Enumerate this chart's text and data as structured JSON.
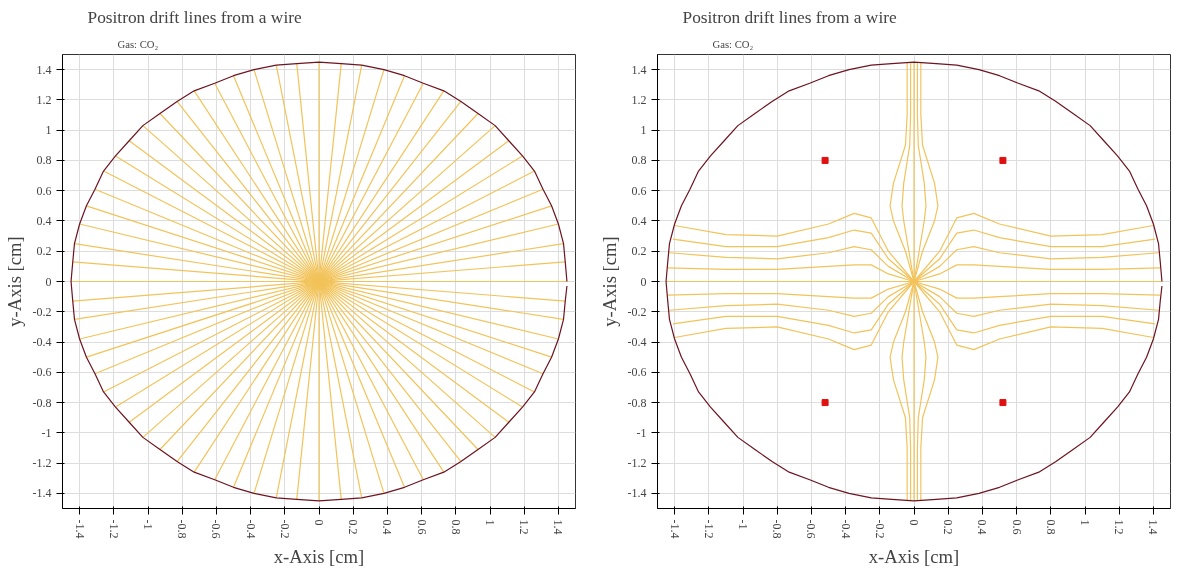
{
  "chart_data": [
    {
      "type": "line",
      "title": "Positron drift lines from a wire",
      "annotations": [
        "Gas: CO₂"
      ],
      "xlabel": "x-Axis [cm]",
      "ylabel": "y-Axis [cm]",
      "xlim": [
        -1.5,
        1.5
      ],
      "ylim": [
        -1.5,
        1.5
      ],
      "xticks": [
        -1.4,
        -1.2,
        -1,
        -0.8,
        -0.6,
        -0.4,
        -0.2,
        0,
        0.2,
        0.4,
        0.6,
        0.8,
        1,
        1.2,
        1.4
      ],
      "yticks": [
        -1.4,
        -1.2,
        -1,
        -0.8,
        -0.6,
        -0.4,
        -0.2,
        0,
        0.2,
        0.4,
        0.6,
        0.8,
        1,
        1.2,
        1.4
      ],
      "grid": true,
      "series": [
        {
          "color": "#f2c35a",
          "x": [
            -1.45,
            1.45
          ],
          "values": [
            0,
            0
          ]
        },
        {
          "color": "#f2c35a",
          "x": [
            -1.44,
            1.44
          ],
          "values": [
            -0.13,
            0.13
          ]
        },
        {
          "color": "#f2c35a",
          "x": [
            -1.43,
            1.43
          ],
          "values": [
            -0.25,
            0.25
          ]
        },
        {
          "color": "#f2c35a",
          "x": [
            -1.4,
            1.4
          ],
          "values": [
            -0.38,
            0.38
          ]
        },
        {
          "color": "#f2c35a",
          "x": [
            -1.36,
            1.36
          ],
          "values": [
            -0.5,
            0.5
          ]
        },
        {
          "color": "#f2c35a",
          "x": [
            -1.31,
            1.31
          ],
          "values": [
            -0.61,
            0.61
          ]
        },
        {
          "color": "#f2c35a",
          "x": [
            -1.26,
            1.26
          ],
          "values": [
            -0.73,
            0.73
          ]
        },
        {
          "color": "#f2c35a",
          "x": [
            -1.19,
            1.19
          ],
          "values": [
            -0.83,
            0.83
          ]
        },
        {
          "color": "#f2c35a",
          "x": [
            -1.11,
            1.11
          ],
          "values": [
            -0.93,
            0.93
          ]
        },
        {
          "color": "#f2c35a",
          "x": [
            -1.03,
            1.03
          ],
          "values": [
            -1.03,
            1.03
          ]
        },
        {
          "color": "#f2c35a",
          "x": [
            -0.93,
            0.93
          ],
          "values": [
            -1.11,
            1.11
          ]
        },
        {
          "color": "#f2c35a",
          "x": [
            -0.83,
            0.83
          ],
          "values": [
            -1.19,
            1.19
          ]
        },
        {
          "color": "#f2c35a",
          "x": [
            -0.73,
            0.73
          ],
          "values": [
            -1.26,
            1.26
          ]
        },
        {
          "color": "#f2c35a",
          "x": [
            -0.61,
            0.61
          ],
          "values": [
            -1.31,
            1.31
          ]
        },
        {
          "color": "#f2c35a",
          "x": [
            -0.5,
            0.5
          ],
          "values": [
            -1.36,
            1.36
          ]
        },
        {
          "color": "#f2c35a",
          "x": [
            -0.38,
            0.38
          ],
          "values": [
            -1.4,
            1.4
          ]
        },
        {
          "color": "#f2c35a",
          "x": [
            -0.25,
            0.25
          ],
          "values": [
            -1.43,
            1.43
          ]
        },
        {
          "color": "#f2c35a",
          "x": [
            -0.13,
            0.13
          ],
          "values": [
            -1.44,
            1.44
          ]
        },
        {
          "color": "#f2c35a",
          "x": [
            0,
            0
          ],
          "values": [
            -1.45,
            1.45
          ]
        },
        {
          "color": "#f2c35a",
          "x": [
            0.13,
            -0.13
          ],
          "values": [
            -1.44,
            1.44
          ]
        },
        {
          "color": "#f2c35a",
          "x": [
            0.25,
            -0.25
          ],
          "values": [
            -1.43,
            1.43
          ]
        },
        {
          "color": "#f2c35a",
          "x": [
            0.38,
            -0.38
          ],
          "values": [
            -1.4,
            1.4
          ]
        },
        {
          "color": "#f2c35a",
          "x": [
            0.5,
            -0.5
          ],
          "values": [
            -1.36,
            1.36
          ]
        },
        {
          "color": "#f2c35a",
          "x": [
            0.61,
            -0.61
          ],
          "values": [
            -1.31,
            1.31
          ]
        },
        {
          "color": "#f2c35a",
          "x": [
            0.73,
            -0.73
          ],
          "values": [
            -1.26,
            1.26
          ]
        },
        {
          "color": "#f2c35a",
          "x": [
            0.83,
            -0.83
          ],
          "values": [
            -1.19,
            1.19
          ]
        },
        {
          "color": "#f2c35a",
          "x": [
            0.93,
            -0.93
          ],
          "values": [
            -1.11,
            1.11
          ]
        },
        {
          "color": "#f2c35a",
          "x": [
            1.03,
            -1.03
          ],
          "values": [
            -1.03,
            1.03
          ]
        },
        {
          "color": "#f2c35a",
          "x": [
            1.11,
            -1.11
          ],
          "values": [
            -0.93,
            0.93
          ]
        },
        {
          "color": "#f2c35a",
          "x": [
            1.19,
            -1.19
          ],
          "values": [
            -0.83,
            0.83
          ]
        },
        {
          "color": "#f2c35a",
          "x": [
            1.26,
            -1.26
          ],
          "values": [
            -0.73,
            0.73
          ]
        },
        {
          "color": "#f2c35a",
          "x": [
            1.31,
            -1.31
          ],
          "values": [
            -0.61,
            0.61
          ]
        },
        {
          "color": "#f2c35a",
          "x": [
            1.36,
            -1.36
          ],
          "values": [
            -0.5,
            0.5
          ]
        },
        {
          "color": "#f2c35a",
          "x": [
            1.4,
            -1.4
          ],
          "values": [
            -0.38,
            0.38
          ]
        },
        {
          "color": "#f2c35a",
          "x": [
            1.43,
            -1.43
          ],
          "values": [
            -0.25,
            0.25
          ]
        },
        {
          "color": "#f2c35a",
          "x": [
            1.44,
            -1.44
          ],
          "values": [
            -0.13,
            0.13
          ]
        },
        {
          "color": "#6e1420",
          "x": [
            1.45,
            1.44,
            1.43,
            1.4,
            1.36,
            1.31,
            1.26,
            1.19,
            1.11,
            1.03,
            0.93,
            0.83,
            0.73,
            0.61,
            0.5,
            0.38,
            0.25,
            0.13,
            0,
            -0.13,
            -0.25,
            -0.38,
            -0.5,
            -0.61,
            -0.73,
            -0.83,
            -0.93,
            -1.03,
            -1.11,
            -1.19,
            -1.26,
            -1.31,
            -1.36,
            -1.4,
            -1.43,
            -1.44,
            -1.45,
            -1.44,
            -1.43,
            -1.4,
            -1.36,
            -1.31,
            -1.26,
            -1.19,
            -1.11,
            -1.03,
            -0.93,
            -0.83,
            -0.73,
            -0.61,
            -0.5,
            -0.38,
            -0.25,
            -0.13,
            0,
            0.13,
            0.25,
            0.38,
            0.5,
            0.61,
            0.73,
            0.83,
            0.93,
            1.03,
            1.11,
            1.19,
            1.26,
            1.31,
            1.36,
            1.4,
            1.43,
            1.44,
            1.45
          ],
          "values": [
            0,
            0.13,
            0.25,
            0.38,
            0.5,
            0.61,
            0.73,
            0.83,
            0.93,
            1.03,
            1.11,
            1.19,
            1.26,
            1.31,
            1.36,
            1.4,
            1.43,
            1.44,
            1.45,
            1.44,
            1.43,
            1.4,
            1.36,
            1.31,
            1.26,
            1.19,
            1.11,
            1.03,
            0.93,
            0.83,
            0.73,
            0.61,
            0.5,
            0.38,
            0.25,
            0.13,
            0,
            -0.13,
            -0.25,
            -0.38,
            -0.5,
            -0.61,
            -0.73,
            -0.83,
            -0.93,
            -1.03,
            -1.11,
            -1.19,
            -1.26,
            -1.31,
            -1.36,
            -1.4,
            -1.43,
            -1.44,
            -1.45,
            -1.44,
            -1.43,
            -1.4,
            -1.36,
            -1.31,
            -1.26,
            -1.19,
            -1.11,
            -1.03,
            -0.93,
            -0.83,
            -0.73,
            -0.61,
            -0.5,
            -0.38,
            -0.25,
            -0.13,
            -0.03
          ]
        }
      ]
    },
    {
      "type": "line",
      "title": "Positron drift lines from a wire",
      "annotations": [
        "Gas: CO₂"
      ],
      "xlabel": "x-Axis [cm]",
      "ylabel": "y-Axis [cm]",
      "xlim": [
        -1.5,
        1.5
      ],
      "ylim": [
        -1.5,
        1.5
      ],
      "xticks": [
        -1.4,
        -1.2,
        -1,
        -0.8,
        -0.6,
        -0.4,
        -0.2,
        0,
        0.2,
        0.4,
        0.6,
        0.8,
        1,
        1.2,
        1.4
      ],
      "yticks": [
        -1.4,
        -1.2,
        -1,
        -0.8,
        -0.6,
        -0.4,
        -0.2,
        0,
        0.2,
        0.4,
        0.6,
        0.8,
        1,
        1.2,
        1.4
      ],
      "grid": true,
      "series": [
        {
          "color": "#f2c35a",
          "x": [
            -1.45,
            1.45
          ],
          "values": [
            0,
            0
          ]
        },
        {
          "color": "#f2c35a",
          "x": [
            -1.4,
            -1.1,
            -0.8,
            -0.5,
            -0.35,
            -0.25,
            -0.15,
            0,
            0.15,
            0.25,
            0.35,
            0.5,
            0.8,
            1.1,
            1.4
          ],
          "values": [
            -0.37,
            -0.31,
            -0.3,
            -0.38,
            -0.45,
            -0.42,
            -0.2,
            0,
            0.2,
            0.42,
            0.45,
            0.38,
            0.3,
            0.31,
            0.37
          ]
        },
        {
          "color": "#f2c35a",
          "x": [
            -1.41,
            -1.1,
            -0.8,
            -0.5,
            -0.35,
            -0.25,
            -0.15,
            0,
            0.15,
            0.25,
            0.35,
            0.5,
            0.8,
            1.1,
            1.41
          ],
          "values": [
            -0.28,
            -0.23,
            -0.23,
            -0.29,
            -0.34,
            -0.32,
            -0.15,
            0,
            0.15,
            0.32,
            0.34,
            0.29,
            0.23,
            0.23,
            0.28
          ]
        },
        {
          "color": "#f2c35a",
          "x": [
            -1.43,
            -1.1,
            -0.8,
            -0.5,
            -0.35,
            -0.25,
            -0.15,
            0,
            0.15,
            0.25,
            0.35,
            0.5,
            0.8,
            1.1,
            1.43
          ],
          "values": [
            -0.19,
            -0.16,
            -0.15,
            -0.19,
            -0.23,
            -0.21,
            -0.1,
            0,
            0.1,
            0.21,
            0.23,
            0.19,
            0.15,
            0.16,
            0.19
          ]
        },
        {
          "color": "#f2c35a",
          "x": [
            -1.44,
            -1.1,
            -0.8,
            -0.5,
            -0.35,
            -0.25,
            -0.15,
            0,
            0.15,
            0.25,
            0.35,
            0.5,
            0.8,
            1.1,
            1.44
          ],
          "values": [
            -0.09,
            -0.08,
            -0.08,
            -0.1,
            -0.11,
            -0.11,
            -0.05,
            0,
            0.05,
            0.11,
            0.11,
            0.1,
            0.08,
            0.08,
            0.09
          ]
        },
        {
          "color": "#f2c35a",
          "x": [
            1.4,
            1.1,
            0.8,
            0.5,
            0.35,
            0.25,
            0.15,
            0,
            -0.15,
            -0.25,
            -0.35,
            -0.5,
            -0.8,
            -1.1,
            -1.4
          ],
          "values": [
            -0.37,
            -0.31,
            -0.3,
            -0.38,
            -0.45,
            -0.42,
            -0.2,
            0,
            0.2,
            0.42,
            0.45,
            0.38,
            0.3,
            0.31,
            0.37
          ]
        },
        {
          "color": "#f2c35a",
          "x": [
            1.41,
            1.1,
            0.8,
            0.5,
            0.35,
            0.25,
            0.15,
            0,
            -0.15,
            -0.25,
            -0.35,
            -0.5,
            -0.8,
            -1.1,
            -1.41
          ],
          "values": [
            -0.28,
            -0.23,
            -0.23,
            -0.29,
            -0.34,
            -0.32,
            -0.15,
            0,
            0.15,
            0.32,
            0.34,
            0.29,
            0.23,
            0.23,
            0.28
          ]
        },
        {
          "color": "#f2c35a",
          "x": [
            1.43,
            1.1,
            0.8,
            0.5,
            0.35,
            0.25,
            0.15,
            0,
            -0.15,
            -0.25,
            -0.35,
            -0.5,
            -0.8,
            -1.1,
            -1.43
          ],
          "values": [
            -0.19,
            -0.16,
            -0.15,
            -0.19,
            -0.23,
            -0.21,
            -0.1,
            0,
            0.1,
            0.21,
            0.23,
            0.19,
            0.15,
            0.16,
            0.19
          ]
        },
        {
          "color": "#f2c35a",
          "x": [
            1.44,
            1.1,
            0.8,
            0.5,
            0.35,
            0.25,
            0.15,
            0,
            -0.15,
            -0.25,
            -0.35,
            -0.5,
            -0.8,
            -1.1,
            -1.44
          ],
          "values": [
            -0.09,
            -0.08,
            -0.08,
            -0.1,
            -0.11,
            -0.11,
            -0.05,
            0,
            0.05,
            0.11,
            0.11,
            0.1,
            0.08,
            0.08,
            0.09
          ]
        },
        {
          "color": "#f2c35a",
          "x": [
            0,
            0
          ],
          "values": [
            -1.45,
            1.45
          ]
        },
        {
          "color": "#f2c35a",
          "x": [
            -0.04,
            -0.04,
            -0.05,
            -0.12,
            -0.14,
            -0.12,
            -0.05,
            0,
            0.05,
            0.12,
            0.14,
            0.12,
            0.05,
            0.04,
            0.04
          ],
          "values": [
            -1.45,
            -1.1,
            -0.9,
            -0.65,
            -0.5,
            -0.4,
            -0.2,
            0,
            0.2,
            0.4,
            0.5,
            0.65,
            0.9,
            1.1,
            1.45
          ]
        },
        {
          "color": "#f2c35a",
          "x": [
            -0.02,
            -0.02,
            -0.025,
            -0.06,
            -0.07,
            -0.06,
            -0.03,
            0,
            0.03,
            0.06,
            0.07,
            0.06,
            0.025,
            0.02,
            0.02
          ],
          "values": [
            -1.45,
            -1.1,
            -0.9,
            -0.65,
            -0.5,
            -0.4,
            -0.2,
            0,
            0.2,
            0.4,
            0.5,
            0.65,
            0.9,
            1.1,
            1.45
          ]
        },
        {
          "color": "#f2c35a",
          "x": [
            0.04,
            0.04,
            0.05,
            0.12,
            0.14,
            0.12,
            0.05,
            0,
            -0.05,
            -0.12,
            -0.14,
            -0.12,
            -0.05,
            -0.04,
            -0.04
          ],
          "values": [
            -1.45,
            -1.1,
            -0.9,
            -0.65,
            -0.5,
            -0.4,
            -0.2,
            0,
            0.2,
            0.4,
            0.5,
            0.65,
            0.9,
            1.1,
            1.45
          ]
        },
        {
          "color": "#f2c35a",
          "x": [
            0.02,
            0.02,
            0.025,
            0.06,
            0.07,
            0.06,
            0.03,
            0,
            -0.03,
            -0.06,
            -0.07,
            -0.06,
            -0.025,
            -0.02,
            -0.02
          ],
          "values": [
            -1.45,
            -1.1,
            -0.9,
            -0.65,
            -0.5,
            -0.4,
            -0.2,
            0,
            0.2,
            0.4,
            0.5,
            0.65,
            0.9,
            1.1,
            1.45
          ]
        },
        {
          "color": "#6e1420",
          "x": [
            1.45,
            1.44,
            1.43,
            1.4,
            1.36,
            1.31,
            1.26,
            1.19,
            1.11,
            1.03,
            0.93,
            0.83,
            0.73,
            0.61,
            0.5,
            0.38,
            0.25,
            0.13,
            0,
            -0.13,
            -0.25,
            -0.38,
            -0.5,
            -0.61,
            -0.73,
            -0.83,
            -0.93,
            -1.03,
            -1.11,
            -1.19,
            -1.26,
            -1.31,
            -1.36,
            -1.4,
            -1.43,
            -1.44,
            -1.45,
            -1.44,
            -1.43,
            -1.4,
            -1.36,
            -1.31,
            -1.26,
            -1.19,
            -1.11,
            -1.03,
            -0.93,
            -0.83,
            -0.73,
            -0.61,
            -0.5,
            -0.38,
            -0.25,
            -0.13,
            0,
            0.13,
            0.25,
            0.38,
            0.5,
            0.61,
            0.73,
            0.83,
            0.93,
            1.03,
            1.11,
            1.19,
            1.26,
            1.31,
            1.36,
            1.4,
            1.43,
            1.44,
            1.45
          ],
          "values": [
            0,
            0.13,
            0.25,
            0.38,
            0.5,
            0.61,
            0.73,
            0.83,
            0.93,
            1.03,
            1.11,
            1.19,
            1.26,
            1.31,
            1.36,
            1.4,
            1.43,
            1.44,
            1.45,
            1.44,
            1.43,
            1.4,
            1.36,
            1.31,
            1.26,
            1.19,
            1.11,
            1.03,
            0.93,
            0.83,
            0.73,
            0.61,
            0.5,
            0.38,
            0.25,
            0.13,
            0,
            -0.13,
            -0.25,
            -0.38,
            -0.5,
            -0.61,
            -0.73,
            -0.83,
            -0.93,
            -1.03,
            -1.11,
            -1.19,
            -1.26,
            -1.31,
            -1.36,
            -1.4,
            -1.43,
            -1.44,
            -1.45,
            -1.44,
            -1.43,
            -1.4,
            -1.36,
            -1.31,
            -1.26,
            -1.19,
            -1.11,
            -1.03,
            -0.93,
            -0.83,
            -0.73,
            -0.61,
            -0.5,
            -0.38,
            -0.25,
            -0.13,
            -0.03
          ]
        },
        {
          "type": "scatter",
          "marker": "square",
          "color": "#e01010",
          "x": [
            -0.52,
            0.52,
            -0.52,
            0.52
          ],
          "values": [
            0.8,
            0.8,
            -0.8,
            -0.8
          ]
        }
      ]
    }
  ]
}
